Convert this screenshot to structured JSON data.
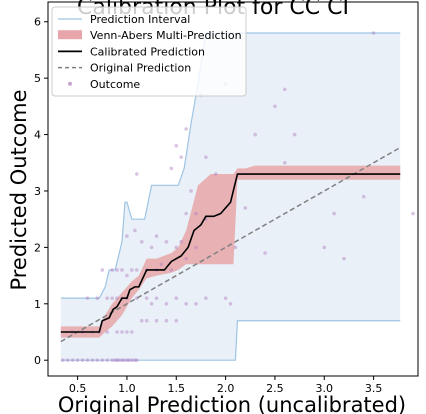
{
  "chart_data": {
    "type": "line",
    "title": "Calibration Plot for CC CI",
    "xlabel": "Original Prediction (uncalibrated)",
    "ylabel": "Predicted Outcome",
    "xlim": [
      0.2,
      3.95
    ],
    "ylim": [
      -0.28,
      6.35
    ],
    "xticks": [
      0.5,
      1.0,
      1.5,
      2.0,
      2.5,
      3.0,
      3.5
    ],
    "xtick_labels": [
      "0.5",
      "1.0",
      "1.5",
      "2.0",
      "2.5",
      "3.0",
      "3.5"
    ],
    "yticks": [
      0,
      1,
      2,
      3,
      4,
      5,
      6
    ],
    "ytick_labels": [
      "0",
      "1",
      "2",
      "3",
      "4",
      "5",
      "6"
    ],
    "grid": false,
    "legend_position": "top-left",
    "legend": [
      {
        "label": "Prediction Interval",
        "kind": "line",
        "color": "#9ec4e4"
      },
      {
        "label": "Venn-Abers Multi-Prediction",
        "kind": "patch",
        "color": "#e8a6ab"
      },
      {
        "label": "Calibrated Prediction",
        "kind": "line",
        "color": "#000000"
      },
      {
        "label": "Original Prediction",
        "kind": "dashed",
        "color": "#808080"
      },
      {
        "label": "Outcome",
        "kind": "dot",
        "color": "#c9a6cf"
      }
    ],
    "colors": {
      "interval_fill": "#e9f0f8",
      "interval_line": "#9ec4e4",
      "venn_abers_fill": "#e8b2b5",
      "calibrated": "#000000",
      "original": "#808080",
      "outcome": "#b07cc0"
    },
    "series": [
      {
        "name": "Prediction Interval",
        "x": [
          0.33,
          0.72,
          0.78,
          0.82,
          0.88,
          0.95,
          0.98,
          1.0,
          1.05,
          1.1,
          1.18,
          1.25,
          1.3,
          1.45,
          1.52,
          1.58,
          1.65,
          1.72,
          1.8,
          1.9,
          2.1,
          2.12,
          3.77
        ],
        "upper": [
          1.1,
          1.1,
          1.3,
          1.6,
          1.6,
          2.1,
          2.8,
          2.8,
          2.5,
          2.5,
          2.5,
          3.1,
          3.1,
          3.1,
          3.1,
          3.4,
          4.2,
          4.9,
          5.8,
          5.8,
          5.8,
          5.8,
          5.8
        ],
        "lower": [
          0.0,
          0.0,
          0.0,
          0.0,
          0.0,
          0.0,
          0.0,
          0.0,
          0.0,
          0.0,
          0.0,
          0.0,
          0.0,
          0.0,
          0.0,
          0.0,
          0.0,
          0.0,
          0.0,
          0.0,
          0.0,
          0.7,
          0.7
        ]
      },
      {
        "name": "Venn-Abers Multi-Prediction",
        "x": [
          0.33,
          0.72,
          0.78,
          0.85,
          0.9,
          0.95,
          1.0,
          1.05,
          1.12,
          1.2,
          1.3,
          1.45,
          1.52,
          1.6,
          1.72,
          1.85,
          2.0,
          2.08,
          2.12,
          2.2,
          2.3,
          2.5,
          3.77
        ],
        "upper": [
          0.6,
          0.6,
          0.8,
          1.0,
          1.1,
          1.2,
          1.3,
          1.4,
          1.5,
          1.8,
          1.8,
          1.9,
          2.0,
          2.3,
          3.1,
          3.3,
          3.3,
          3.3,
          3.4,
          3.4,
          3.45,
          3.45,
          3.45
        ],
        "lower": [
          0.4,
          0.4,
          0.5,
          0.6,
          0.7,
          0.8,
          0.95,
          1.1,
          1.25,
          1.45,
          1.5,
          1.55,
          1.6,
          1.7,
          1.7,
          1.7,
          1.7,
          1.7,
          3.2,
          3.2,
          3.2,
          3.2,
          3.2
        ]
      },
      {
        "name": "Calibrated Prediction",
        "x": [
          0.33,
          0.72,
          0.75,
          0.82,
          0.86,
          0.9,
          0.95,
          1.0,
          1.03,
          1.08,
          1.12,
          1.2,
          1.25,
          1.38,
          1.45,
          1.5,
          1.55,
          1.62,
          1.68,
          1.75,
          1.8,
          1.88,
          1.95,
          2.05,
          2.12,
          2.2,
          2.5,
          3.0,
          3.77
        ],
        "y": [
          0.5,
          0.5,
          0.7,
          0.75,
          0.9,
          0.95,
          1.1,
          1.1,
          1.25,
          1.3,
          1.3,
          1.6,
          1.6,
          1.6,
          1.75,
          1.8,
          1.85,
          2.0,
          2.3,
          2.4,
          2.55,
          2.55,
          2.6,
          2.8,
          3.3,
          3.3,
          3.3,
          3.3,
          3.3
        ]
      },
      {
        "name": "Original Prediction",
        "x": [
          0.33,
          3.77
        ],
        "y": [
          0.33,
          3.77
        ]
      },
      {
        "name": "Outcome",
        "x": [
          0.35,
          0.4,
          0.45,
          0.5,
          0.55,
          0.6,
          0.65,
          0.7,
          0.75,
          0.8,
          0.85,
          0.88,
          0.9,
          0.92,
          0.95,
          0.97,
          1.0,
          1.02,
          1.05,
          1.08,
          1.1,
          0.45,
          0.55,
          0.65,
          0.72,
          0.8,
          0.9,
          0.95,
          1.0,
          1.05,
          1.15,
          1.2,
          1.3,
          1.4,
          1.5,
          0.6,
          0.7,
          0.8,
          0.85,
          0.9,
          0.95,
          1.0,
          1.1,
          1.2,
          1.25,
          1.3,
          1.4,
          1.5,
          1.6,
          1.7,
          1.8,
          2.0,
          2.05,
          0.75,
          0.85,
          0.9,
          0.95,
          1.0,
          1.05,
          1.1,
          1.2,
          1.3,
          1.35,
          1.45,
          1.5,
          1.55,
          1.6,
          1.7,
          2.1,
          2.4,
          3.0,
          3.2,
          1.0,
          1.08,
          1.15,
          1.25,
          1.3,
          1.4,
          1.6,
          1.7,
          1.8,
          2.2,
          3.1,
          3.4,
          1.45,
          1.55,
          1.65,
          1.8,
          1.9,
          2.6,
          3.9,
          2.3,
          2.7,
          1.1,
          1.3,
          1.6,
          1.75,
          2.6,
          3.5,
          2.0,
          2.5,
          1.5
        ],
        "y": [
          0,
          0,
          0,
          0,
          0,
          0,
          0,
          0,
          0,
          0,
          0,
          0,
          0,
          0,
          0,
          0,
          0,
          0,
          0,
          0,
          0,
          0.5,
          0.5,
          0.5,
          0.5,
          0.5,
          0.5,
          0.5,
          0.5,
          0.5,
          0.7,
          0.7,
          0.7,
          0.7,
          0.7,
          1.1,
          1.1,
          1.1,
          1.1,
          1.1,
          1.1,
          1.1,
          1.1,
          1.1,
          1.0,
          1.1,
          1.0,
          1.1,
          1.0,
          1.0,
          1.1,
          1.1,
          1.0,
          1.6,
          1.6,
          1.6,
          1.6,
          1.5,
          1.6,
          1.6,
          1.6,
          1.6,
          1.7,
          1.6,
          2.0,
          2.1,
          1.8,
          2.0,
          2.0,
          1.9,
          2.0,
          1.8,
          2.2,
          2.3,
          2.1,
          2.0,
          2.2,
          2.1,
          2.6,
          2.6,
          2.5,
          2.7,
          2.6,
          2.9,
          3.4,
          3.6,
          3.0,
          3.6,
          3.3,
          3.5,
          2.6,
          4.0,
          4.0,
          3.3,
          5.2,
          4.1,
          4.7,
          4.8,
          5.8,
          4.9,
          4.5,
          3.8
        ]
      }
    ]
  }
}
